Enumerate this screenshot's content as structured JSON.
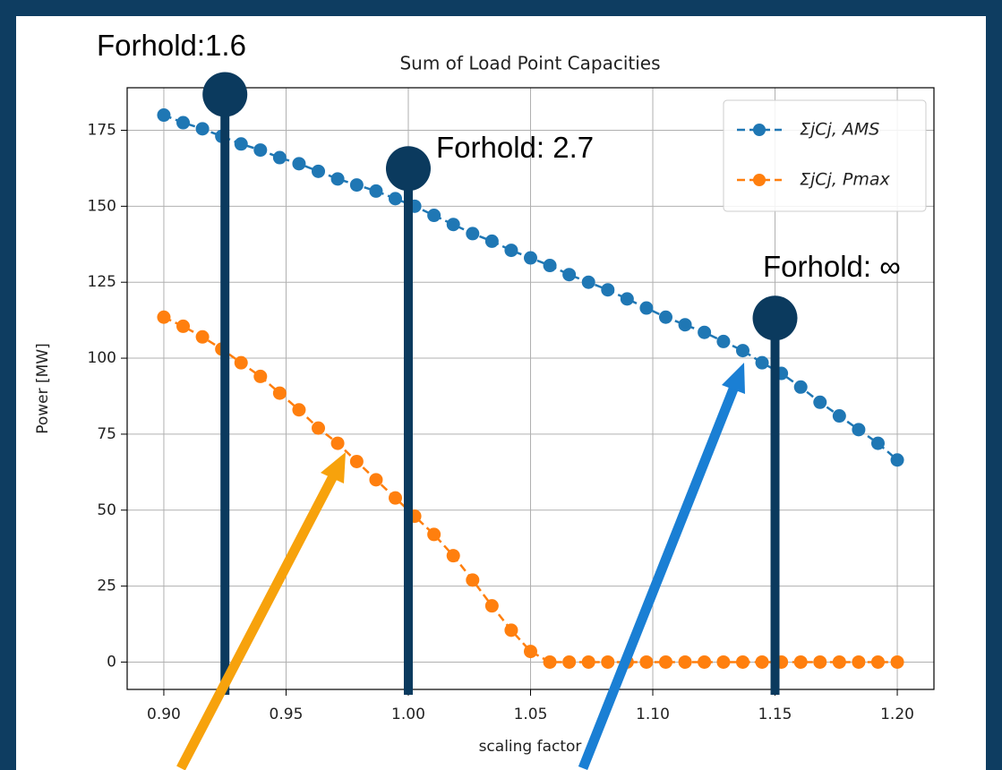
{
  "chart_data": {
    "type": "line",
    "title": "Sum of Load Point Capacities",
    "xlabel": "scaling factor",
    "ylabel": "Power [MW]",
    "x": [
      0.9,
      0.9079,
      0.9158,
      0.9237,
      0.9316,
      0.9395,
      0.9474,
      0.9553,
      0.9632,
      0.9711,
      0.9789,
      0.9868,
      0.9947,
      1.0026,
      1.0105,
      1.0184,
      1.0263,
      1.0342,
      1.0421,
      1.05,
      1.0579,
      1.0658,
      1.0737,
      1.0816,
      1.0895,
      1.0974,
      1.1053,
      1.1132,
      1.1211,
      1.1289,
      1.1368,
      1.1447,
      1.1526,
      1.1605,
      1.1684,
      1.1763,
      1.1842,
      1.1921,
      1.2
    ],
    "series": [
      {
        "name": "ΣjCj, AMS",
        "color": "#1f77b4",
        "values": [
          180,
          177.5,
          175.5,
          173,
          170.5,
          168.5,
          166,
          164,
          161.5,
          159,
          157,
          155,
          152.5,
          150,
          147,
          144,
          141,
          138.5,
          135.5,
          133,
          130.5,
          127.5,
          125,
          122.5,
          119.5,
          116.5,
          113.5,
          111,
          108.5,
          105.5,
          102.5,
          98.5,
          95,
          90.5,
          85.5,
          81,
          76.5,
          72,
          66.5
        ]
      },
      {
        "name": "ΣjCj, Pmax",
        "color": "#ff7f0e",
        "values": [
          113.5,
          110.5,
          107,
          103,
          98.5,
          94,
          88.5,
          83,
          77,
          72,
          66,
          60,
          54,
          48,
          42,
          35,
          27,
          18.5,
          10.5,
          3.5,
          0,
          0,
          0,
          0,
          0,
          0,
          0,
          0,
          0,
          0,
          0,
          0,
          0,
          0,
          0,
          0,
          0,
          0,
          0
        ]
      }
    ],
    "xlim": [
      0.885,
      1.215
    ],
    "ylim": [
      -9,
      189
    ],
    "xticks": [
      {
        "value": 0.9,
        "label": "0.90"
      },
      {
        "value": 0.95,
        "label": "0.95"
      },
      {
        "value": 1.0,
        "label": "1.00"
      },
      {
        "value": 1.05,
        "label": "1.05"
      },
      {
        "value": 1.1,
        "label": "1.10"
      },
      {
        "value": 1.15,
        "label": "1.15"
      },
      {
        "value": 1.2,
        "label": "1.20"
      }
    ],
    "yticks": [
      0,
      25,
      50,
      75,
      100,
      125,
      150,
      175
    ],
    "grid": true,
    "legend": "upper right",
    "annotations": [
      {
        "label": "Forhold:1.6",
        "x": 0.925,
        "y": 186.8
      },
      {
        "label": "Forhold: 2.7",
        "x": 1.0,
        "y": 162.4
      },
      {
        "label": "Forhold: ∞",
        "x": 1.15,
        "y": 113.2
      }
    ]
  }
}
